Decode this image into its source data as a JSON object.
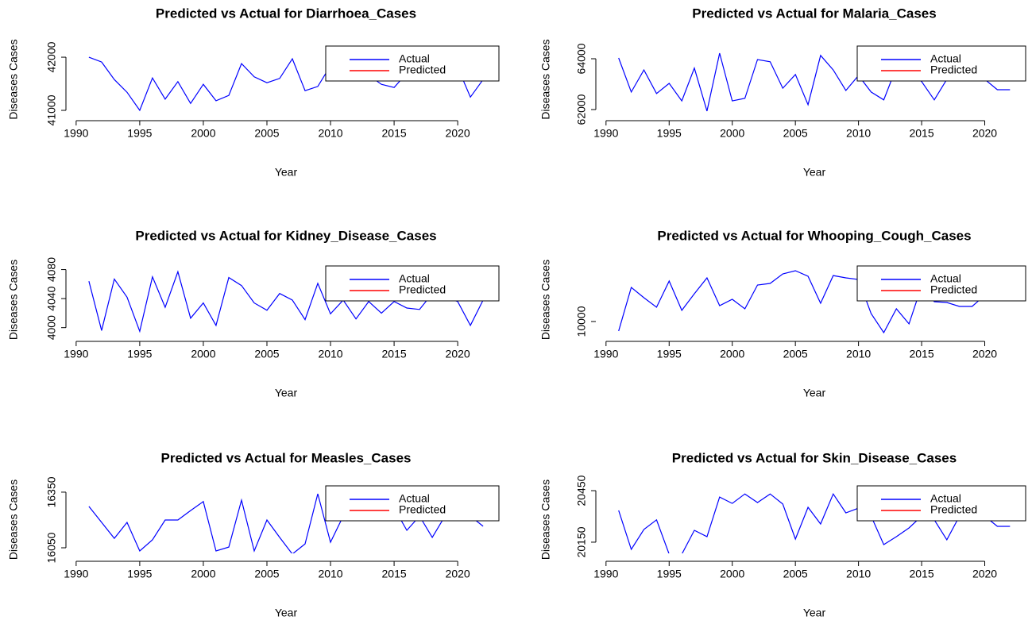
{
  "chart_data": [
    {
      "type": "line",
      "title": "Predicted vs Actual for Diarrhoea_Cases",
      "xlabel": "Year",
      "ylabel": "Diseases Cases",
      "legend": "topright",
      "x": [
        1991,
        1992,
        1993,
        1994,
        1995,
        1996,
        1997,
        1998,
        1999,
        2000,
        2001,
        2002,
        2003,
        2004,
        2005,
        2006,
        2007,
        2008,
        2009,
        2010,
        2011,
        2012,
        2013,
        2014,
        2015,
        2016,
        2017,
        2018,
        2019,
        2020,
        2021,
        2022
      ],
      "series": [
        {
          "name": "Actual",
          "color": "#0000ff",
          "values": [
            42000,
            41910,
            41580,
            41340,
            41000,
            41610,
            41210,
            41540,
            41130,
            41490,
            41180,
            41280,
            41880,
            41630,
            41520,
            41600,
            41970,
            41370,
            41450,
            41840,
            41810,
            41730,
            41660,
            41490,
            41430,
            41700,
            41760,
            41660,
            41730,
            41810,
            41250,
            41580
          ]
        },
        {
          "name": "Predicted",
          "color": "#ff0000",
          "values": [
            null,
            null,
            null,
            null,
            null,
            null,
            null,
            null,
            null,
            null,
            null,
            null,
            null,
            null,
            null,
            null,
            null,
            null,
            null,
            null,
            null,
            null,
            null,
            null,
            null,
            null,
            null,
            null,
            null,
            null,
            null,
            null
          ]
        }
      ],
      "xlim": [
        1989.76,
        2023.24
      ],
      "ylim": [
        40955,
        42210
      ],
      "xticks": [
        1990,
        1995,
        2000,
        2005,
        2010,
        2015,
        2020
      ],
      "yticks": [
        41000,
        42000
      ]
    },
    {
      "type": "line",
      "title": "Predicted vs Actual for Malaria_Cases",
      "xlabel": "Year",
      "ylabel": "Diseases Cases",
      "legend": "topright",
      "x": [
        1991,
        1992,
        1993,
        1994,
        1995,
        1996,
        1997,
        1998,
        1999,
        2000,
        2001,
        2002,
        2003,
        2004,
        2005,
        2006,
        2007,
        2008,
        2009,
        2010,
        2011,
        2012,
        2013,
        2014,
        2015,
        2016,
        2017,
        2018,
        2019,
        2020,
        2021,
        2022
      ],
      "series": [
        {
          "name": "Actual",
          "color": "#0000ff",
          "values": [
            64030,
            62690,
            63560,
            62630,
            63030,
            62340,
            63630,
            61940,
            64220,
            62340,
            62440,
            63970,
            63880,
            62840,
            63380,
            62190,
            64130,
            63560,
            62750,
            63340,
            62690,
            62380,
            63660,
            63500,
            63100,
            62380,
            63190,
            63500,
            63400,
            63190,
            62780,
            62780
          ]
        },
        {
          "name": "Predicted",
          "color": "#ff0000",
          "values": [
            null,
            null,
            null,
            null,
            null,
            null,
            null,
            null,
            null,
            null,
            null,
            null,
            null,
            null,
            null,
            null,
            null,
            null,
            null,
            null,
            null,
            null,
            null,
            null,
            null,
            null,
            null,
            null,
            null,
            null,
            null,
            null
          ]
        }
      ],
      "xlim": [
        1989.76,
        2023.24
      ],
      "ylim": [
        61875,
        64500
      ],
      "xticks": [
        1990,
        1995,
        2000,
        2005,
        2010,
        2015,
        2020
      ],
      "yticks": [
        62000,
        64000
      ]
    },
    {
      "type": "line",
      "title": "Predicted vs Actual for Kidney_Disease_Cases",
      "xlabel": "Year",
      "ylabel": "Diseases Cases",
      "legend": "topright",
      "x": [
        1991,
        1992,
        1993,
        1994,
        1995,
        1996,
        1997,
        1998,
        1999,
        2000,
        2001,
        2002,
        2003,
        2004,
        2005,
        2006,
        2007,
        2008,
        2009,
        2010,
        2011,
        2012,
        2013,
        2014,
        2015,
        2016,
        2017,
        2018,
        2019,
        2020,
        2021,
        2022
      ],
      "series": [
        {
          "name": "Actual",
          "color": "#0000ff",
          "values": [
            4064,
            3996,
            4067,
            4042,
            3995,
            4070,
            4028,
            4077,
            4013,
            4034,
            4003,
            4069,
            4058,
            4034,
            4024,
            4047,
            4038,
            4011,
            4061,
            4019,
            4038,
            4012,
            4036,
            4020,
            4036,
            4027,
            4025,
            4047,
            4042,
            4036,
            4003,
            4038
          ]
        },
        {
          "name": "Predicted",
          "color": "#ff0000",
          "values": [
            null,
            null,
            null,
            null,
            null,
            null,
            null,
            null,
            null,
            null,
            null,
            null,
            null,
            null,
            null,
            null,
            null,
            null,
            null,
            null,
            null,
            null,
            null,
            null,
            null,
            null,
            null,
            null,
            null,
            null,
            null,
            null
          ]
        }
      ],
      "xlim": [
        1989.76,
        2023.24
      ],
      "ylim": [
        3992,
        4085
      ],
      "xticks": [
        1990,
        1995,
        2000,
        2005,
        2010,
        2015,
        2020
      ],
      "yticks": [
        4000,
        4040,
        4080
      ]
    },
    {
      "type": "line",
      "title": "Predicted vs Actual for Whooping_Cough_Cases",
      "xlabel": "Year",
      "ylabel": "Diseases Cases",
      "legend": "topright",
      "x": [
        1991,
        1992,
        1993,
        1994,
        1995,
        1996,
        1997,
        1998,
        1999,
        2000,
        2001,
        2002,
        2003,
        2004,
        2005,
        2006,
        2007,
        2008,
        2009,
        2010,
        2011,
        2012,
        2013,
        2014,
        2015,
        2016,
        2017,
        2018,
        2019,
        2020,
        2021,
        2022
      ],
      "series": [
        {
          "name": "Actual",
          "color": "#0000ff",
          "values": [
            9867,
            10478,
            10333,
            10200,
            10567,
            10156,
            10389,
            10611,
            10222,
            10311,
            10178,
            10511,
            10533,
            10667,
            10711,
            10633,
            10256,
            10644,
            10611,
            10589,
            10111,
            9844,
            10178,
            9967,
            10500,
            10278,
            10267,
            10211,
            10211,
            10367,
            10444,
            10500
          ]
        },
        {
          "name": "Predicted",
          "color": "#ff0000",
          "values": [
            null,
            null,
            null,
            null,
            null,
            null,
            null,
            null,
            null,
            null,
            null,
            null,
            null,
            null,
            null,
            null,
            null,
            null,
            null,
            null,
            null,
            null,
            null,
            null,
            null,
            null,
            null,
            null,
            null,
            null,
            null,
            null
          ]
        }
      ],
      "xlim": [
        1989.76,
        2023.24
      ],
      "ylim": [
        9833,
        10778
      ],
      "xticks": [
        1990,
        1995,
        2000,
        2005,
        2010,
        2015,
        2020
      ],
      "yticks": [
        10000
      ]
    },
    {
      "type": "line",
      "title": "Predicted vs Actual for Measles_Cases",
      "xlabel": "Year",
      "ylabel": "Diseases Cases",
      "legend": "topright",
      "x": [
        1991,
        1992,
        1993,
        1994,
        1995,
        1996,
        1997,
        1998,
        1999,
        2000,
        2001,
        2002,
        2003,
        2004,
        2005,
        2006,
        2007,
        2008,
        2009,
        2010,
        2011,
        2012,
        2013,
        2014,
        2015,
        2016,
        2017,
        2018,
        2019,
        2020,
        2021,
        2022
      ],
      "series": [
        {
          "name": "Actual",
          "color": "#0000ff",
          "values": [
            16273,
            16187,
            16101,
            16187,
            16033,
            16093,
            16200,
            16200,
            16251,
            16299,
            16033,
            16054,
            16307,
            16033,
            16200,
            16106,
            16016,
            16071,
            16341,
            16080,
            16221,
            16221,
            16243,
            16221,
            16264,
            16144,
            16221,
            16106,
            16221,
            16221,
            16221,
            16166
          ]
        },
        {
          "name": "Predicted",
          "color": "#ff0000",
          "values": [
            null,
            null,
            null,
            null,
            null,
            null,
            null,
            null,
            null,
            null,
            null,
            null,
            null,
            null,
            null,
            null,
            null,
            null,
            null,
            null,
            null,
            null,
            null,
            null,
            null,
            null,
            null,
            null,
            null,
            null,
            null,
            null
          ]
        }
      ],
      "xlim": [
        1989.76,
        2023.24
      ],
      "ylim": [
        16020,
        16384
      ],
      "xticks": [
        1990,
        1995,
        2000,
        2005,
        2010,
        2015,
        2020
      ],
      "yticks": [
        16050,
        16350
      ]
    },
    {
      "type": "line",
      "title": "Predicted vs Actual for Skin_Disease_Cases",
      "xlabel": "Year",
      "ylabel": "Diseases Cases",
      "legend": "topright",
      "x": [
        1991,
        1992,
        1993,
        1994,
        1995,
        1996,
        1997,
        1998,
        1999,
        2000,
        2001,
        2002,
        2003,
        2004,
        2005,
        2006,
        2007,
        2008,
        2009,
        2010,
        2011,
        2012,
        2013,
        2014,
        2015,
        2016,
        2017,
        2018,
        2019,
        2020,
        2021,
        2022
      ],
      "series": [
        {
          "name": "Actual",
          "color": "#0000ff",
          "values": [
            20335,
            20108,
            20224,
            20280,
            20080,
            20080,
            20219,
            20182,
            20413,
            20376,
            20431,
            20381,
            20431,
            20372,
            20168,
            20353,
            20256,
            20431,
            20321,
            20348,
            20302,
            20136,
            20182,
            20233,
            20302,
            20280,
            20164,
            20302,
            20302,
            20302,
            20242,
            20242
          ]
        },
        {
          "name": "Predicted",
          "color": "#ff0000",
          "values": [
            null,
            null,
            null,
            null,
            null,
            null,
            null,
            null,
            null,
            null,
            null,
            null,
            null,
            null,
            null,
            null,
            null,
            null,
            null,
            null,
            null,
            null,
            null,
            null,
            null,
            null,
            null,
            null,
            null,
            null,
            null,
            null
          ]
        }
      ],
      "xlim": [
        1989.76,
        2023.24
      ],
      "ylim": [
        20085,
        20478
      ],
      "xticks": [
        1990,
        1995,
        2000,
        2005,
        2010,
        2015,
        2020
      ],
      "yticks": [
        20150,
        20450
      ]
    }
  ]
}
